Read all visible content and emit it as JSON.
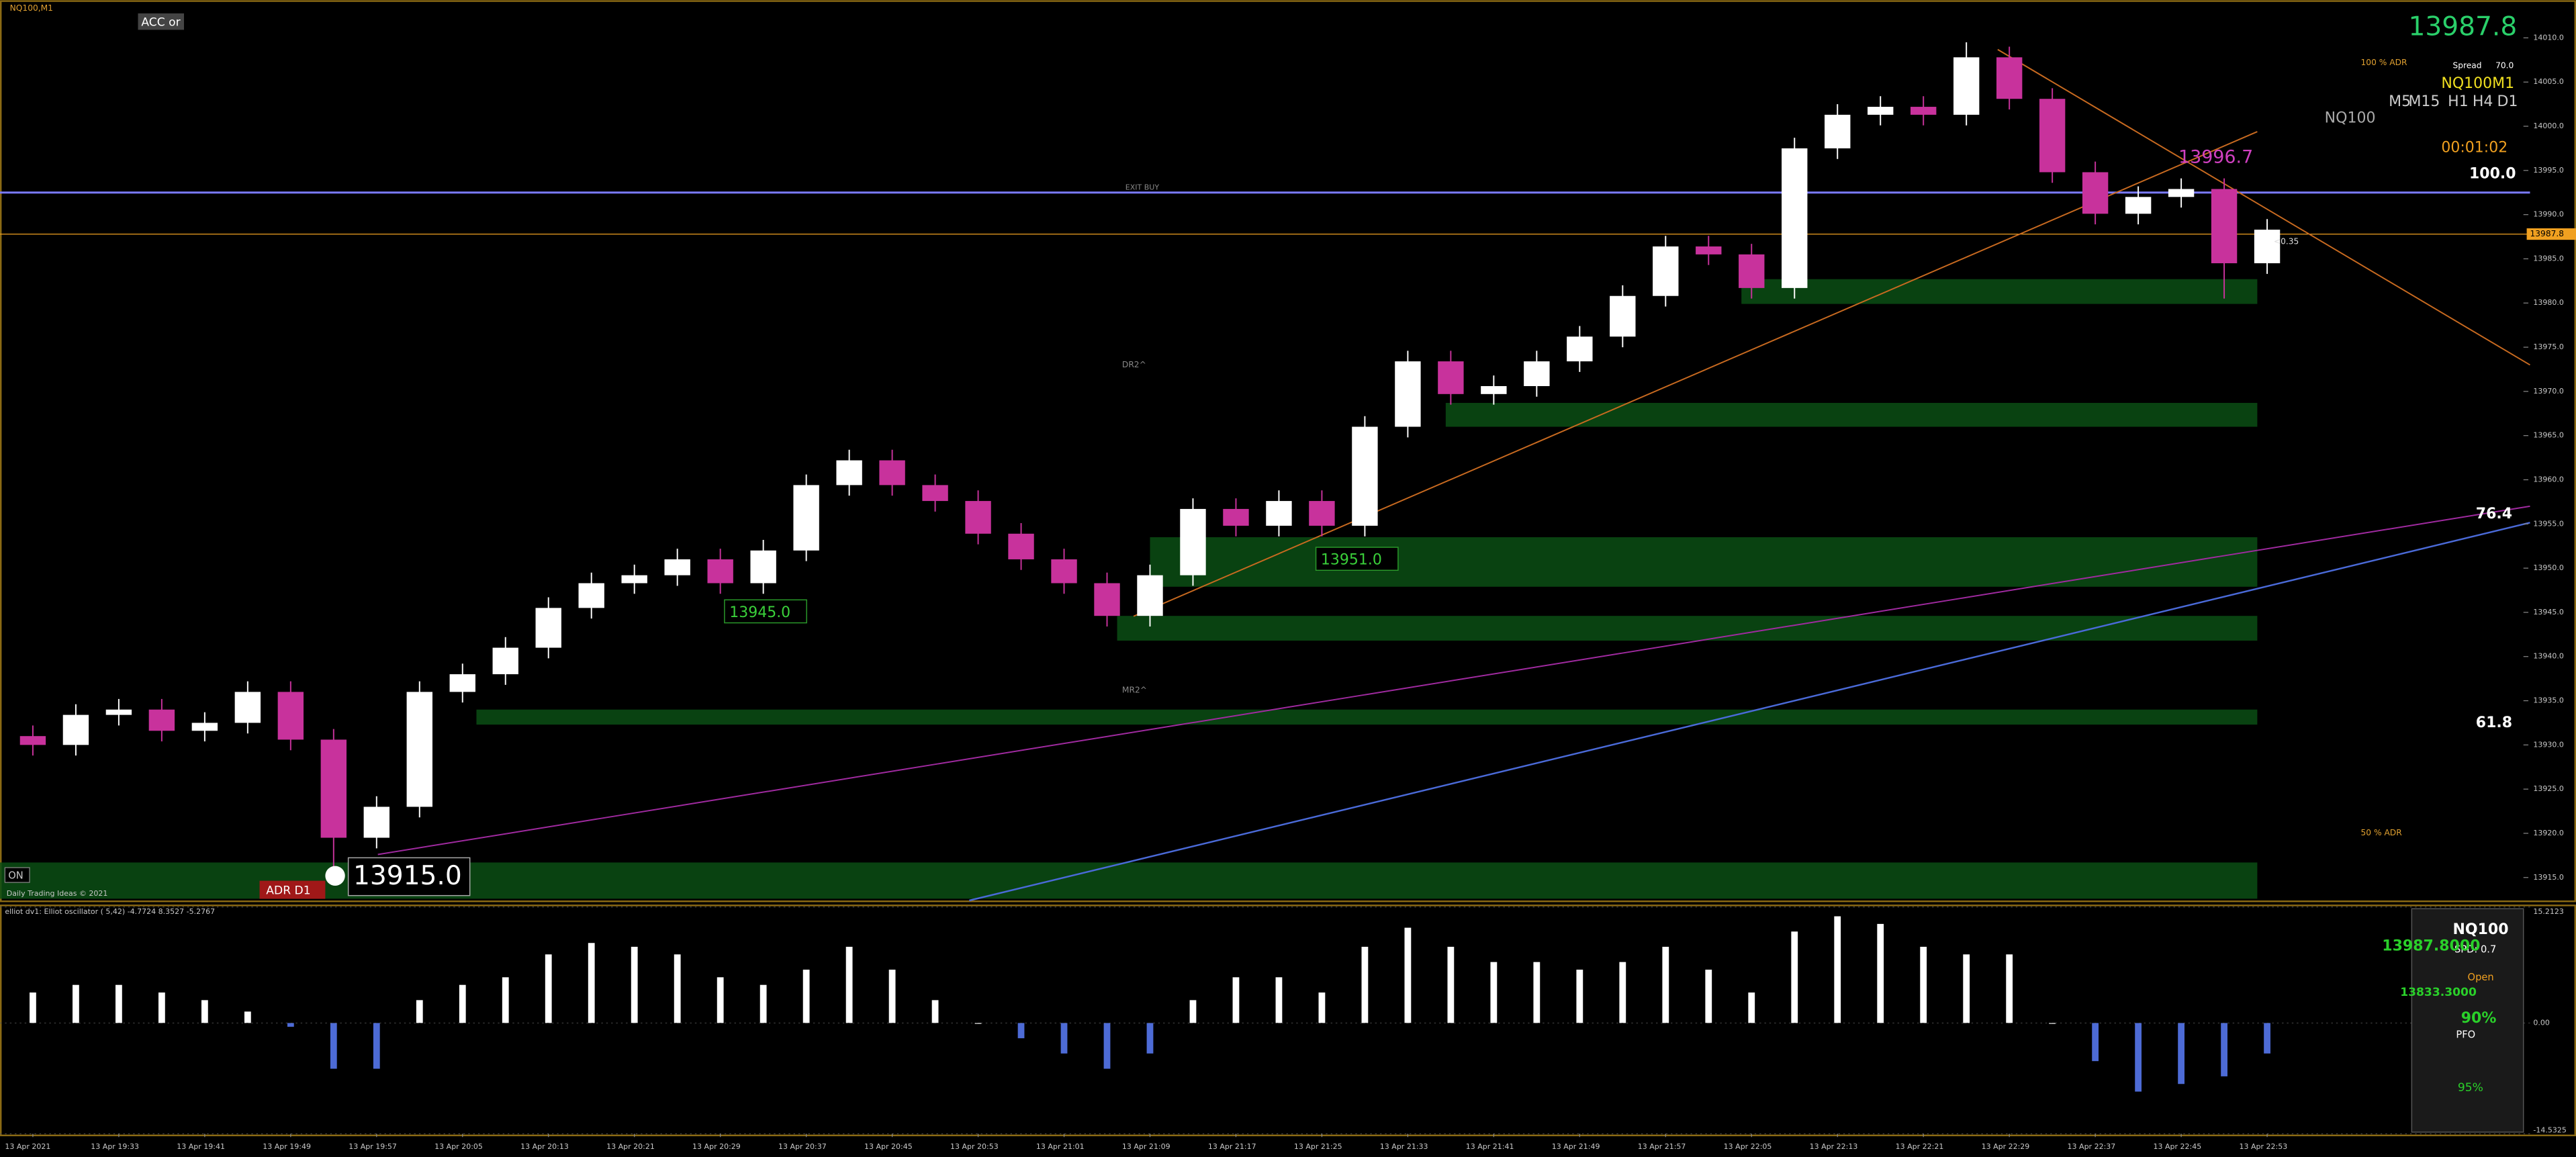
{
  "chart_data": [
    {
      "type": "candlestick",
      "title": "NQ100,M1",
      "open": [
        13931,
        13930,
        13933.4,
        13934,
        13931.6,
        13932.5,
        13936,
        13930.6,
        13919.5,
        13923,
        13936,
        13938,
        13941,
        13945.5,
        13948.3,
        13949.2,
        13951,
        13948.3,
        13952,
        13959.4,
        13962.2,
        13959.4,
        13957.6,
        13953.9,
        13951,
        13948.3,
        13944.6,
        13949.2,
        13956.7,
        13954.8,
        13957.6,
        13954.8,
        13966,
        13973.4,
        13969.7,
        13970.6,
        13973.4,
        13976.2,
        13980.8,
        13986.4,
        13985.5,
        13981.7,
        13997.5,
        14001.3,
        14002.2,
        14001.3,
        14007.8,
        14003.1,
        13994.8,
        13990.1,
        13992,
        13992.9,
        13984.5
      ],
      "high": [
        13932.2,
        13934.6,
        13935.2,
        13935.2,
        13933.7,
        13937.2,
        13937.2,
        13931.8,
        13924.2,
        13937.2,
        13939.2,
        13942.2,
        13946.7,
        13949.5,
        13950.4,
        13952.2,
        13952.2,
        13953.2,
        13960.6,
        13963.4,
        13963.4,
        13960.6,
        13958.8,
        13955.1,
        13952.2,
        13949.5,
        13950.4,
        13957.9,
        13957.9,
        13958.8,
        13958.8,
        13967.2,
        13974.6,
        13974.6,
        13971.8,
        13974.6,
        13977.4,
        13982,
        13987.6,
        13987.6,
        13986.7,
        13998.7,
        14002.5,
        14003.4,
        14003.4,
        14009.5,
        14009,
        14004.3,
        13996,
        13993.2,
        13994.1,
        13994.1,
        13989.5
      ],
      "low": [
        13928.8,
        13928.8,
        13932.2,
        13930.4,
        13930.4,
        13931.3,
        13929.4,
        13915,
        13918.3,
        13921.8,
        13934.8,
        13936.8,
        13939.8,
        13944.3,
        13947.1,
        13948,
        13947.1,
        13947.1,
        13950.8,
        13958.2,
        13958.2,
        13956.4,
        13952.7,
        13949.8,
        13947.1,
        13943.4,
        13943.4,
        13948,
        13953.6,
        13953.6,
        13953.6,
        13953.6,
        13964.8,
        13968.5,
        13968.5,
        13969.4,
        13972.2,
        13975,
        13979.6,
        13984.3,
        13980.5,
        13980.5,
        13996.3,
        14000.1,
        14000.1,
        14000.1,
        14001.9,
        13993.6,
        13988.9,
        13988.9,
        13990.8,
        13980.5,
        13983.3
      ],
      "close": [
        13930,
        13933.4,
        13934,
        13931.6,
        13932.5,
        13936,
        13930.6,
        13919.5,
        13923,
        13936,
        13938,
        13941,
        13945.5,
        13948.3,
        13949.2,
        13951,
        13948.3,
        13952,
        13959.4,
        13962.2,
        13959.4,
        13957.6,
        13953.9,
        13951,
        13948.3,
        13944.6,
        13949.2,
        13956.7,
        13954.8,
        13957.6,
        13954.8,
        13966,
        13973.4,
        13969.7,
        13970.6,
        13973.4,
        13976.2,
        13980.8,
        13986.4,
        13985.5,
        13981.7,
        13997.5,
        14001.3,
        14002.2,
        14001.3,
        14007.8,
        14003.1,
        13994.8,
        13990.1,
        13992,
        13992.9,
        13984.5,
        13988.3
      ],
      "up_color": "#ffffff",
      "down_color": "#c8329c",
      "ylim": [
        13912.4,
        14013.7
      ],
      "yticks": [
        {
          "value": 13915,
          "label": "13915.0"
        },
        {
          "value": 13920,
          "label": "13920.0"
        },
        {
          "value": 13925,
          "label": "13925.0"
        },
        {
          "value": 13930,
          "label": "13930.0"
        },
        {
          "value": 13935,
          "label": "13935.0"
        },
        {
          "value": 13940,
          "label": "13940.0"
        },
        {
          "value": 13945,
          "label": "13945.0"
        },
        {
          "value": 13950,
          "label": "13950.0"
        },
        {
          "value": 13955,
          "label": "13955.0"
        },
        {
          "value": 13960,
          "label": "13960.0"
        },
        {
          "value": 13965,
          "label": "13965.0"
        },
        {
          "value": 13970,
          "label": "13970.0"
        },
        {
          "value": 13975,
          "label": "13975.0"
        },
        {
          "value": 13980,
          "label": "13980.0"
        },
        {
          "value": 13985,
          "label": "13985.0"
        },
        {
          "value": 13990,
          "label": "13990.0"
        },
        {
          "value": 13995,
          "label": "13995.0"
        },
        {
          "value": 14000,
          "label": "14000.0"
        },
        {
          "value": 14005,
          "label": "14005.0"
        },
        {
          "value": 14010,
          "label": "14010.0"
        }
      ],
      "last_price": 13987.8,
      "last_price_color": "#f0a020",
      "exit_level": 13992.5,
      "exit_label": "EXIT BUY",
      "exit_color": "#7b7bff",
      "zones": [
        [
          13979.9,
          13982.7
        ],
        [
          13966,
          13968.7
        ],
        [
          13947.9,
          13953.5
        ],
        [
          13941.8,
          13944.6
        ],
        [
          13932.3,
          13934
        ],
        [
          13912.6,
          13916.7
        ]
      ],
      "zone_color": "#0b4d14",
      "annotations": {
        "acc": "ACC or",
        "dr2": "DR2^",
        "mr2": "MR2^",
        "adr100": "100 % ADR",
        "adr50": "50 % ADR",
        "fib100": "100.0",
        "fib76": "76.4",
        "fib61": "61.8",
        "lbl1": "13945.0",
        "lbl2": "13951.0",
        "lbl3": "13915.0",
        "lbl4": "13996.7",
        "symbol": "NQ100M1",
        "timeframes": [
          "M5",
          "M15",
          "H1",
          "H4",
          "D1"
        ],
        "timer": "00:01:02",
        "spread": "Spread",
        "spread_val": "70.0",
        "pips": "<0.35",
        "on": "ON",
        "adr_d1": "ADR D1",
        "credit": "Daily Trading Ideas © 2021",
        "nq": "NQ100"
      }
    },
    {
      "type": "bar",
      "title": "elliot dv1: Elliot oscillator ( 5,42) -4.7724 8.3527 -5.2767",
      "categories": [
        "13 Apr 2021",
        null,
        "13 Apr 19:33",
        null,
        "13 Apr 19:41",
        null,
        "13 Apr 19:49",
        null,
        "13 Apr 19:57",
        null,
        "13 Apr 20:05",
        null,
        "13 Apr 20:13",
        null,
        "13 Apr 20:21",
        null,
        "13 Apr 20:29",
        null,
        "13 Apr 20:37",
        null,
        "13 Apr 20:45",
        null,
        "13 Apr 20:53",
        null,
        "13 Apr 21:01",
        null,
        "13 Apr 21:09",
        null,
        "13 Apr 21:17",
        null,
        "13 Apr 21:25",
        null,
        "13 Apr 21:33",
        null,
        "13 Apr 21:41",
        null,
        "13 Apr 21:49",
        null,
        "13 Apr 21:57",
        null,
        "13 Apr 22:05",
        null,
        "13 Apr 22:13",
        null,
        "13 Apr 22:21",
        null,
        "13 Apr 22:29",
        null,
        "13 Apr 22:37",
        null,
        "13 Apr 22:45",
        null,
        "13 Apr 22:53"
      ],
      "values": [
        4,
        5,
        5,
        4,
        3,
        1.5,
        -0.5,
        -6,
        -6,
        3,
        5,
        6,
        9,
        10.5,
        10,
        9,
        6,
        5,
        7,
        10,
        7,
        3,
        0,
        -2,
        -4,
        -6,
        -4,
        3,
        6,
        6,
        4,
        10,
        12.5,
        10,
        8,
        8,
        7,
        8,
        10,
        7,
        4,
        12,
        14,
        13,
        10,
        9,
        9,
        0,
        -5,
        -9,
        -8,
        -7,
        -4
      ],
      "up_color": "#ffffff",
      "down_color": "#4d6bd6",
      "ylim": [
        -14.5325,
        15.2123
      ],
      "yticks": [
        15.2123,
        {
          "value": 0,
          "label": "0.00"
        },
        -14.5325
      ]
    }
  ],
  "panel": {
    "name": "NQ100",
    "spd": "SPD: 0.7",
    "price": "13987.8000",
    "open": "Open",
    "open_val": "13833.3000",
    "pct": "90%",
    "pfo": "PFO",
    "pct2": "95%"
  }
}
